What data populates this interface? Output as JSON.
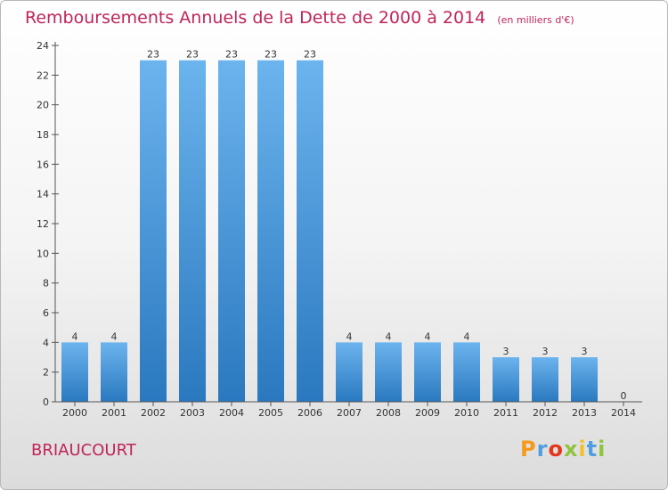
{
  "header": {
    "title": "Remboursements Annuels de la Dette de 2000 à 2014",
    "unit_note": "(en milliers d'€)"
  },
  "footer": {
    "city": "BRIAUCOURT",
    "brand": {
      "letters": [
        "P",
        "r",
        "o",
        "x",
        "i",
        "t",
        "i"
      ],
      "colors": [
        "#f59a1b",
        "#4f9ee0",
        "#e3371e",
        "#8fc43c",
        "#f2c12e",
        "#4f9ee0",
        "#8fc43c"
      ]
    }
  },
  "chart_data": {
    "type": "bar",
    "title": "Remboursements Annuels de la Dette de 2000 à 2014",
    "categories": [
      "2000",
      "2001",
      "2002",
      "2003",
      "2004",
      "2005",
      "2006",
      "2007",
      "2008",
      "2009",
      "2010",
      "2011",
      "2012",
      "2013",
      "2014"
    ],
    "values": [
      4,
      4,
      23,
      23,
      23,
      23,
      23,
      4,
      4,
      4,
      4,
      3,
      3,
      3,
      0
    ],
    "ylim": [
      0,
      24
    ],
    "yticks": [
      0,
      2,
      4,
      6,
      8,
      10,
      12,
      14,
      16,
      18,
      20,
      22,
      24
    ],
    "grid": false,
    "colors": {
      "bar_top": "#6cb4ee",
      "bar_bottom": "#2a78bf",
      "axis": "#555555"
    }
  }
}
